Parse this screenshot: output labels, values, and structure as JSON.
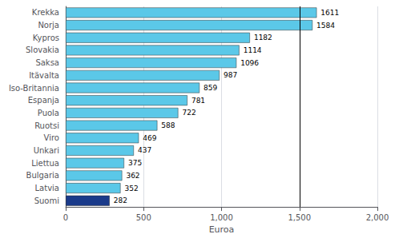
{
  "chart_data": {
    "type": "bar",
    "orientation": "horizontal",
    "categories": [
      "Krekka",
      "Norja",
      "Kypros",
      "Slovakia",
      "Saksa",
      "Itävalta",
      "Iso-Britannia",
      "Espanja",
      "Puola",
      "Ruotsi",
      "Viro",
      "Unkari",
      "Liettua",
      "Bulgaria",
      "Latvia",
      "Suomi"
    ],
    "values": [
      1611,
      1584,
      1182,
      1114,
      1096,
      987,
      859,
      781,
      722,
      588,
      469,
      437,
      375,
      362,
      352,
      282
    ],
    "colors": [
      "#5bc8e8",
      "#5bc8e8",
      "#5bc8e8",
      "#5bc8e8",
      "#5bc8e8",
      "#5bc8e8",
      "#5bc8e8",
      "#5bc8e8",
      "#5bc8e8",
      "#5bc8e8",
      "#5bc8e8",
      "#5bc8e8",
      "#5bc8e8",
      "#5bc8e8",
      "#5bc8e8",
      "#1a3a8a"
    ],
    "xlabel": "Euroa",
    "xlim": [
      0,
      2000
    ],
    "xticks": [
      0,
      500,
      1000,
      1500,
      2000
    ],
    "grid": true,
    "data_labels": true,
    "vline_x": 1500
  }
}
